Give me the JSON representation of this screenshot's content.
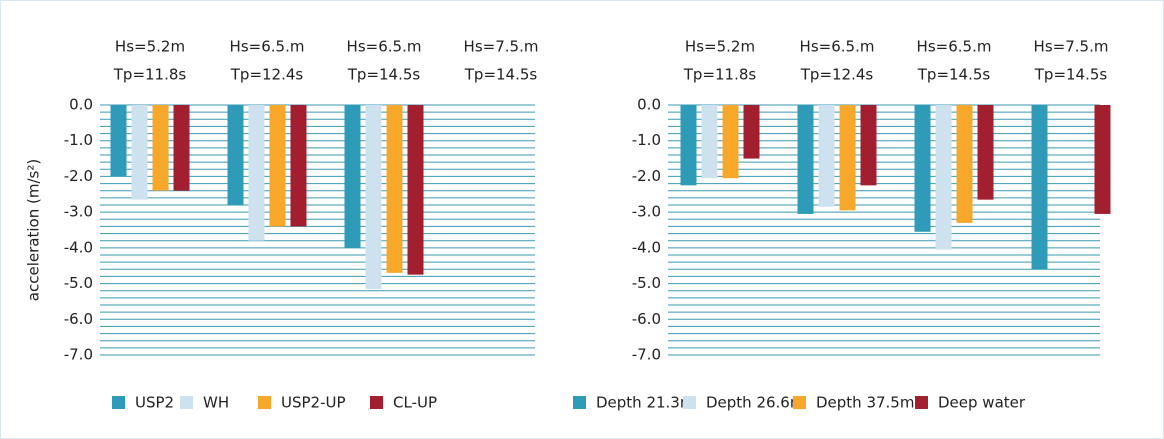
{
  "chart_data": [
    {
      "type": "bar",
      "y_label": "acceleration (m/s²)",
      "categories": [
        [
          "Hs=5.2m",
          "Tp=11.8s"
        ],
        [
          "Hs=6.5.m",
          "Tp=12.4s"
        ],
        [
          "Hs=6.5.m",
          "Tp=14.5s"
        ],
        [
          "Hs=7.5.m",
          "Tp=14.5s"
        ]
      ],
      "series": [
        {
          "name": "USP2",
          "color": "#2e9bb8",
          "values": [
            -2.0,
            -2.8,
            -4.0,
            null
          ]
        },
        {
          "name": "WH",
          "color": "#cde2ee",
          "values": [
            -2.65,
            -3.8,
            -5.15,
            null
          ]
        },
        {
          "name": "USP2-UP",
          "color": "#f7a82a",
          "values": [
            -2.4,
            -3.4,
            -4.7,
            null
          ]
        },
        {
          "name": "CL-UP",
          "color": "#a11f2f",
          "values": [
            -2.4,
            -3.4,
            -4.75,
            null
          ]
        }
      ],
      "ylim": [
        -7,
        0
      ],
      "yticks": [
        {
          "value": 0,
          "label": "0.0"
        },
        {
          "value": -1,
          "label": "-1.0"
        },
        {
          "value": -2,
          "label": "-2.0"
        },
        {
          "value": -3,
          "label": "-3.0"
        },
        {
          "value": -4,
          "label": "-4.0"
        },
        {
          "value": -5,
          "label": "-5.0"
        },
        {
          "value": -6,
          "label": "-6.0"
        },
        {
          "value": -7,
          "label": "-7.0"
        }
      ],
      "grid_yticks": [
        0,
        -0.2,
        -0.4,
        -0.6,
        -0.8,
        -1,
        -1.2,
        -1.4,
        -1.6,
        -1.8,
        -2,
        -2.2,
        -2.4,
        -2.6,
        -2.8,
        -3,
        -3.2,
        -3.4,
        -3.6,
        -3.8,
        -4,
        -4.2,
        -4.4,
        -4.6,
        -4.8,
        -5,
        -5.2,
        -5.4,
        -5.6,
        -5.8,
        -6,
        -6.2,
        -6.4,
        -6.6,
        -6.8,
        -7
      ],
      "legend": "bottom"
    },
    {
      "type": "bar",
      "categories": [
        [
          "Hs=5.2m",
          "Tp=11.8s"
        ],
        [
          "Hs=6.5.m",
          "Tp=12.4s"
        ],
        [
          "Hs=6.5.m",
          "Tp=14.5s"
        ],
        [
          "Hs=7.5.m",
          "Tp=14.5s"
        ]
      ],
      "series": [
        {
          "name": "Depth 21.3m",
          "color": "#2e9bb8",
          "values": [
            -2.25,
            -3.05,
            -3.55,
            -4.6
          ]
        },
        {
          "name": "Depth 26.6m",
          "color": "#cde2ee",
          "values": [
            -2.05,
            -2.85,
            -4.05,
            null
          ]
        },
        {
          "name": "Depth 37.5m",
          "color": "#f7a82a",
          "values": [
            -2.05,
            -2.95,
            -3.3,
            null
          ]
        },
        {
          "name": "Deep water",
          "color": "#a11f2f",
          "values": [
            -1.5,
            -2.25,
            -2.65,
            -3.05
          ]
        }
      ],
      "ylim": [
        -7,
        0
      ],
      "yticks": [
        {
          "value": 0,
          "label": "0.0"
        },
        {
          "value": -1,
          "label": "-1.0"
        },
        {
          "value": -2,
          "label": "-2.0"
        },
        {
          "value": -3,
          "label": "-3.0"
        },
        {
          "value": -4,
          "label": "-4.0"
        },
        {
          "value": -5,
          "label": "-5.0"
        },
        {
          "value": -6,
          "label": "-6.0"
        },
        {
          "value": -7,
          "label": "-7.0"
        }
      ],
      "grid_yticks": [
        0,
        -0.2,
        -0.4,
        -0.6,
        -0.8,
        -1,
        -1.2,
        -1.4,
        -1.6,
        -1.8,
        -2,
        -2.2,
        -2.4,
        -2.6,
        -2.8,
        -3,
        -3.2,
        -3.4,
        -3.6,
        -3.8,
        -4,
        -4.2,
        -4.4,
        -4.6,
        -4.8,
        -5,
        -5.2,
        -5.4,
        -5.6,
        -5.8,
        -6,
        -6.2,
        -6.4,
        -6.6,
        -6.8,
        -7
      ],
      "legend": "bottom"
    }
  ]
}
